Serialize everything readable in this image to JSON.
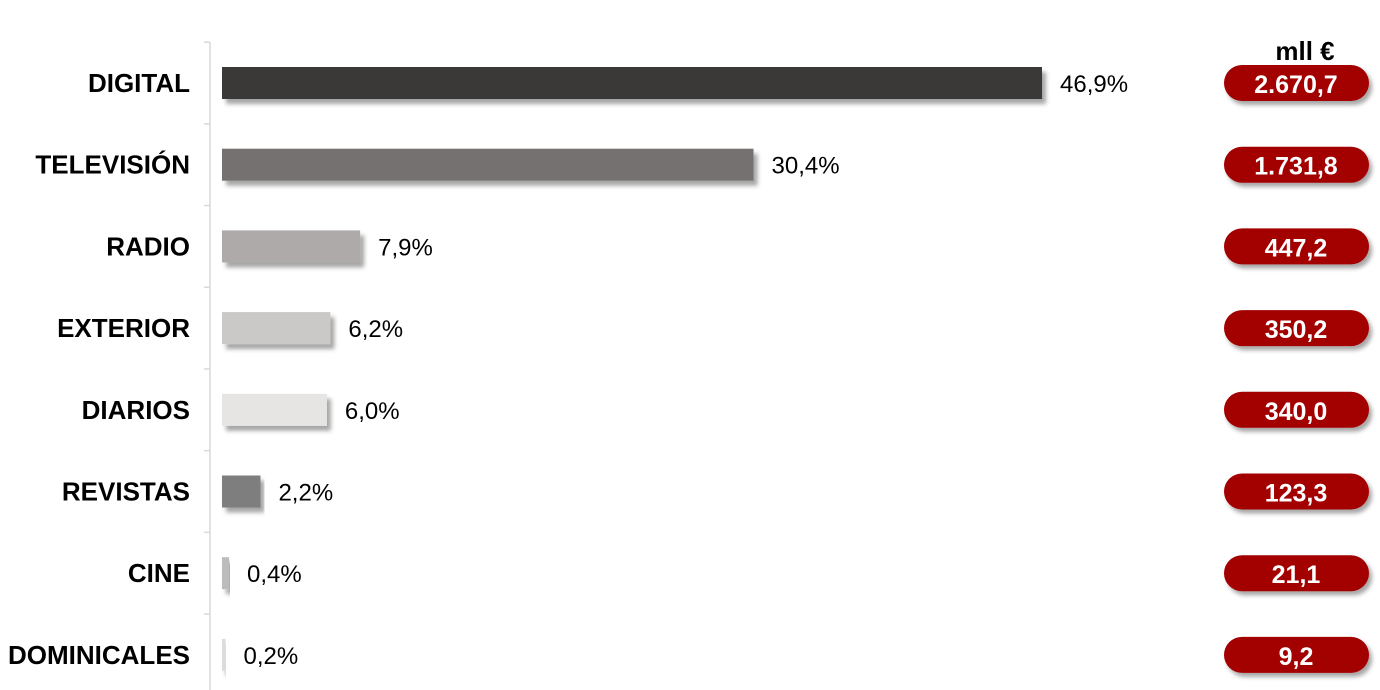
{
  "chart_data": {
    "type": "bar",
    "orientation": "horizontal",
    "unit_label": "mll €",
    "categories": [
      "DIGITAL",
      "TELEVISIÓN",
      "RADIO",
      "EXTERIOR",
      "DIARIOS",
      "REVISTAS",
      "CINE",
      "DOMINICALES"
    ],
    "values": [
      46.9,
      30.4,
      7.9,
      6.2,
      6.0,
      2.2,
      0.4,
      0.2
    ],
    "value_labels": [
      "46,9%",
      "30,4%",
      "7,9%",
      "6,2%",
      "6,0%",
      "2,2%",
      "0,4%",
      "0,2%"
    ],
    "amounts": [
      "2.670,7",
      "1.731,8",
      "447,2",
      "350,2",
      "340,0",
      "123,3",
      "21,1",
      "9,2"
    ],
    "bar_colors": [
      "#3b3938",
      "#757170",
      "#aeaaa9",
      "#cbc9c8",
      "#e6e5e4",
      "#7f7e7e",
      "#bdbcbc",
      "#dddcdc"
    ],
    "amount_badge_color": "#a30101",
    "xlim": [
      0,
      47
    ],
    "grid": false
  }
}
